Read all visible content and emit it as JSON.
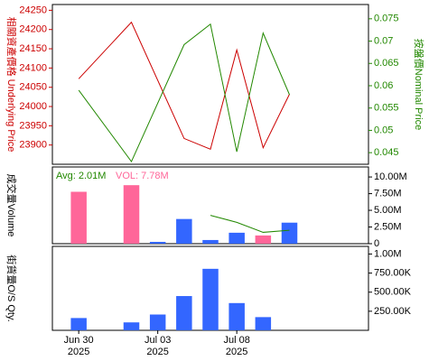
{
  "chart_data": [
    {
      "type": "line",
      "y_label": "相關資產價格 Underlying Price",
      "y2_label": "按盤價Nominal Price",
      "xlim": [
        "2025-06-27",
        "2025-07-15"
      ],
      "ylim": [
        23850,
        24265
      ],
      "yticks": [
        23900,
        23950,
        24000,
        24050,
        24100,
        24150,
        24200,
        24250
      ],
      "y2lim": [
        0.0424,
        0.0782
      ],
      "y2ticks": [
        0.045,
        0.05,
        0.055,
        0.06,
        0.065,
        0.07,
        0.075
      ],
      "y_color": "#cc0000",
      "y2_color": "#228800",
      "series": [
        {
          "color": "#cc0000",
          "x": [
            "2025-06-30",
            "2025-07-02",
            "2025-07-04",
            "2025-07-07",
            "2025-07-08",
            "2025-07-09",
            "2025-07-10"
          ],
          "values": [
            24072,
            24219,
            23917,
            23889,
            24147,
            23893,
            24032
          ]
        },
        {
          "color": "#228800",
          "axis": "y2",
          "x": [
            "2025-06-30",
            "2025-07-02",
            "2025-07-04",
            "2025-07-07",
            "2025-07-08",
            "2025-07-09",
            "2025-07-10"
          ],
          "values": [
            0.059,
            0.043,
            0.0692,
            0.0738,
            0.0452,
            0.0718,
            0.058
          ]
        }
      ]
    },
    {
      "type": "bar",
      "y_label": "成交量Volume",
      "annotations": [
        {
          "text": "Avg: 2.01M",
          "color": "#228800"
        },
        {
          "text": "VOL: 7.78M",
          "color": "#ff6699"
        }
      ],
      "xlim": [
        "2025-06-27",
        "2025-07-15"
      ],
      "ylim": [
        0,
        11500000
      ],
      "yticks": [
        0,
        {
          "value": 2500000,
          "label": "2.50M"
        },
        {
          "value": 5000000,
          "label": "5.00M"
        },
        {
          "value": 7500000,
          "label": "7.50M"
        },
        {
          "value": 10000000,
          "label": "10.00M"
        }
      ],
      "x": [
        "2025-06-30",
        "2025-07-02",
        "2025-07-03",
        "2025-07-04",
        "2025-07-07",
        "2025-07-08",
        "2025-07-09",
        "2025-07-10"
      ],
      "values": [
        7780000,
        8770000,
        270000,
        3700000,
        550000,
        1640000,
        1230000,
        3150000
      ],
      "colors": [
        "#ff6699",
        "#ff6699",
        "#3366ff",
        "#3366ff",
        "#3366ff",
        "#3366ff",
        "#ff6699",
        "#3366ff"
      ],
      "avg_line": {
        "color": "#228800",
        "x": [
          "2025-07-07",
          "2025-07-08",
          "2025-07-09",
          "2025-07-10"
        ],
        "values": [
          4250000,
          3200000,
          1700000,
          2010000
        ]
      }
    },
    {
      "type": "bar",
      "y_label": "街貨量O/S Qty.",
      "xlim": [
        "2025-06-27",
        "2025-07-15"
      ],
      "ylim": [
        0,
        1100000
      ],
      "yticks": [
        {
          "value": 250000,
          "label": "250.00K"
        },
        {
          "value": 500000,
          "label": "500.00K"
        },
        {
          "value": 750000,
          "label": "750.00K"
        },
        {
          "value": 1000000,
          "label": "1.00M"
        }
      ],
      "x": [
        "2025-06-30",
        "2025-07-02",
        "2025-07-03",
        "2025-07-04",
        "2025-07-07",
        "2025-07-08",
        "2025-07-09"
      ],
      "values": [
        161000,
        104000,
        207000,
        449000,
        806000,
        357000,
        173000
      ],
      "color": "#3366ff",
      "xticks": [
        {
          "value": "2025-06-30",
          "label": "Jun 30\n2025"
        },
        {
          "value": "2025-07-03",
          "label": "Jul 03\n2025"
        },
        {
          "value": "2025-07-08",
          "label": "Jul 08\n2025"
        }
      ]
    }
  ]
}
